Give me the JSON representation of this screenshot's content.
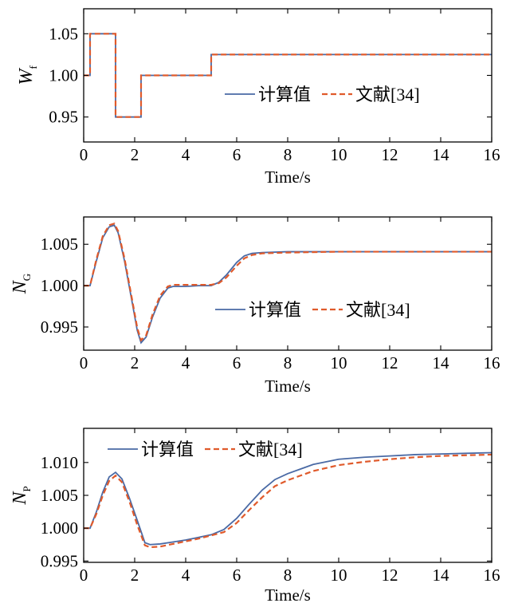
{
  "colors": {
    "calc": "#4a6aa5",
    "ref": "#e05a2b"
  },
  "chart_data": [
    {
      "type": "line",
      "ylabel": "W",
      "ylabel_sub": "f",
      "xlabel": "Time/s",
      "xlim": [
        0,
        16
      ],
      "ylim": [
        0.92,
        1.08
      ],
      "xticks": [
        0,
        2,
        4,
        6,
        8,
        10,
        12,
        14,
        16
      ],
      "yticks": [
        0.95,
        1.0,
        1.05
      ],
      "ytick_labels": [
        "0.95",
        "1.00",
        "1.05"
      ],
      "legend_position": "center-right",
      "series": [
        {
          "name": "计算值",
          "x": [
            0,
            0.25,
            0.25,
            1.25,
            1.25,
            2.25,
            2.25,
            5,
            5,
            16
          ],
          "y": [
            1.0,
            1.0,
            1.05,
            1.05,
            0.95,
            0.95,
            1.0,
            1.0,
            1.025,
            1.025
          ]
        },
        {
          "name": "文献[34]",
          "x": [
            0,
            0.25,
            0.25,
            1.25,
            1.25,
            2.25,
            2.25,
            5,
            5,
            16
          ],
          "y": [
            1.0,
            1.0,
            1.05,
            1.05,
            0.95,
            0.95,
            1.0,
            1.0,
            1.025,
            1.025
          ]
        }
      ]
    },
    {
      "type": "line",
      "ylabel": "N",
      "ylabel_sub": "G",
      "xlabel": "Time/s",
      "xlim": [
        0,
        16
      ],
      "ylim": [
        0.9922,
        1.0083
      ],
      "xticks": [
        0,
        2,
        4,
        6,
        8,
        10,
        12,
        14,
        16
      ],
      "yticks": [
        0.995,
        1.0,
        1.005
      ],
      "ytick_labels": [
        "0.995",
        "1.000",
        "1.005"
      ],
      "legend_position": "center-right",
      "series": [
        {
          "name": "计算值",
          "x": [
            0,
            0.25,
            0.5,
            0.75,
            1.0,
            1.2,
            1.35,
            1.6,
            1.9,
            2.1,
            2.25,
            2.45,
            2.7,
            3.0,
            3.3,
            3.5,
            4.0,
            4.5,
            5.0,
            5.3,
            5.6,
            6.0,
            6.3,
            6.6,
            7.0,
            8.0,
            10.0,
            12.0,
            14.0,
            16.0
          ],
          "y": [
            1.0,
            1.0,
            1.003,
            1.0058,
            1.0071,
            1.0073,
            1.0064,
            1.003,
            0.998,
            0.9946,
            0.9931,
            0.9938,
            0.9962,
            0.9985,
            0.9997,
            0.9999,
            0.9999,
            1.0,
            1.0,
            1.0004,
            1.0013,
            1.0028,
            1.0036,
            1.0039,
            1.004,
            1.0041,
            1.0041,
            1.0041,
            1.0041,
            1.0041
          ]
        },
        {
          "name": "文献[34]",
          "x": [
            0,
            0.25,
            0.5,
            0.75,
            1.0,
            1.2,
            1.35,
            1.6,
            1.9,
            2.1,
            2.25,
            2.45,
            2.7,
            3.0,
            3.3,
            3.5,
            4.0,
            4.5,
            5.0,
            5.3,
            5.6,
            6.0,
            6.3,
            6.6,
            7.0,
            8.0,
            10.0,
            12.0,
            14.0,
            16.0
          ],
          "y": [
            1.0,
            1.0,
            1.0032,
            1.006,
            1.0073,
            1.0075,
            1.0066,
            1.0033,
            0.9983,
            0.9949,
            0.9934,
            0.994,
            0.9965,
            0.9988,
            0.9999,
            1.0001,
            1.0001,
            1.0001,
            1.0001,
            1.0003,
            1.001,
            1.0024,
            1.0033,
            1.0037,
            1.0039,
            1.004,
            1.0041,
            1.0041,
            1.0041,
            1.0041
          ]
        }
      ]
    },
    {
      "type": "line",
      "ylabel": "N",
      "ylabel_sub": "P",
      "xlabel": "Time/s",
      "xlim": [
        0,
        16
      ],
      "ylim": [
        0.9948,
        1.0152
      ],
      "xticks": [
        0,
        2,
        4,
        6,
        8,
        10,
        12,
        14,
        16
      ],
      "yticks": [
        0.995,
        1.0,
        1.005,
        1.01
      ],
      "ytick_labels": [
        "0.995",
        "1.000",
        "1.005",
        "1.010"
      ],
      "legend_position": "top-left",
      "series": [
        {
          "name": "计算值",
          "x": [
            0,
            0.25,
            0.5,
            0.75,
            1.0,
            1.25,
            1.5,
            1.8,
            2.1,
            2.4,
            2.6,
            3.0,
            3.5,
            4.0,
            4.5,
            5.0,
            5.5,
            6.0,
            6.5,
            7.0,
            7.5,
            8.0,
            9.0,
            10.0,
            11.0,
            12.0,
            13.0,
            14.0,
            15.0,
            16.0
          ],
          "y": [
            1.0,
            1.0,
            1.0025,
            1.0055,
            1.0078,
            1.0085,
            1.0075,
            1.0045,
            1.0012,
            0.9978,
            0.9975,
            0.9976,
            0.9979,
            0.9982,
            0.9986,
            0.999,
            0.9998,
            1.0015,
            1.0037,
            1.0058,
            1.0074,
            1.0083,
            1.0097,
            1.0105,
            1.0108,
            1.011,
            1.0112,
            1.0113,
            1.0114,
            1.0115
          ]
        },
        {
          "name": "文献[34]",
          "x": [
            0,
            0.25,
            0.5,
            0.75,
            1.0,
            1.25,
            1.5,
            1.8,
            2.1,
            2.4,
            2.6,
            3.0,
            3.5,
            4.0,
            4.5,
            5.0,
            5.5,
            6.0,
            6.5,
            7.0,
            7.5,
            8.0,
            9.0,
            10.0,
            11.0,
            12.0,
            13.0,
            14.0,
            15.0,
            16.0
          ],
          "y": [
            1.0,
            1.0,
            1.0022,
            1.005,
            1.0072,
            1.008,
            1.007,
            1.004,
            1.0005,
            0.9974,
            0.9971,
            0.9972,
            0.9976,
            0.998,
            0.9984,
            0.9989,
            0.9994,
            1.0008,
            1.0028,
            1.0047,
            1.0064,
            1.0073,
            1.0087,
            1.0096,
            1.0101,
            1.0105,
            1.0108,
            1.011,
            1.0111,
            1.0112
          ]
        }
      ]
    }
  ]
}
